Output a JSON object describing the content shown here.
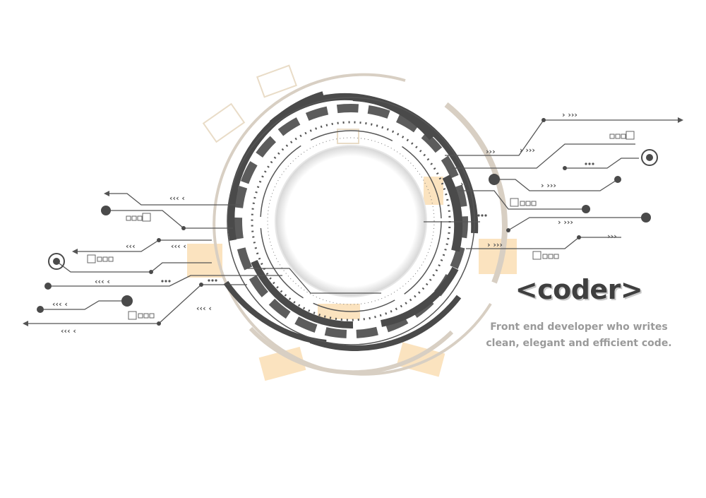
{
  "branding": {
    "title": "<coder>",
    "tagline": "Front end developer who writes clean, elegant and efficient code."
  },
  "colors": {
    "background": "#ffffff",
    "title": "#3f3f3f",
    "tagline": "#9a9a9a",
    "dark": "#4a4a4a",
    "line": "#555555",
    "beige": "#d8cfc3",
    "peach": "#fbe3bf"
  },
  "icons": {
    "circuit_graphic": "circular-circuit-illustration"
  }
}
